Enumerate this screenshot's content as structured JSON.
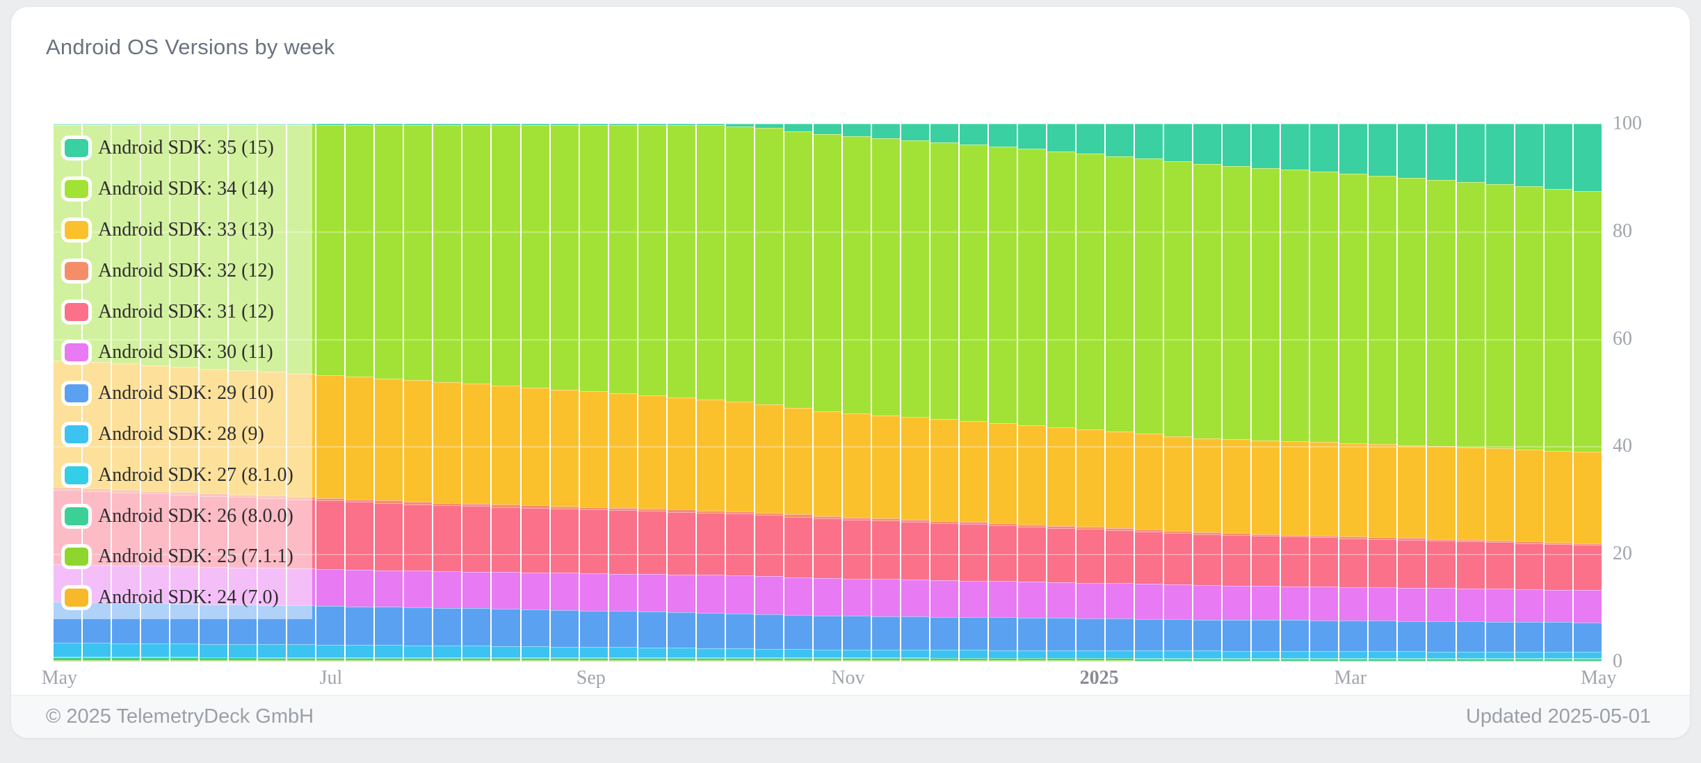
{
  "card": {
    "title": "Android OS Versions by week",
    "footer": {
      "copyright": "© 2025 TelemetryDeck GmbH",
      "updated": "Updated 2025-05-01"
    }
  },
  "colors": {
    "page_background": "#ebedef",
    "card_background": "#ffffff",
    "footer_background": "#f7f8f9",
    "axis_text": "#a0a5ad",
    "title_text": "#6b7280"
  },
  "chart_data": {
    "type": "bar",
    "subtype": "stacked-100-percent-weekly",
    "title": "Android OS Versions by week",
    "x_unit": "week",
    "weeks": 53,
    "x_range": [
      "May 2024",
      "May 2025"
    ],
    "ylim": [
      0,
      100
    ],
    "y_ticks": [
      0,
      20,
      40,
      60,
      80,
      100
    ],
    "grid": "subtle white lines at 20/40/60/80 over bars",
    "legend_position": "top-left overlay, translucent white panel",
    "x_ticks": [
      {
        "label": "May",
        "week": 0.2,
        "bold": false
      },
      {
        "label": "Jul",
        "week": 9.5,
        "bold": false
      },
      {
        "label": "Sep",
        "week": 18.4,
        "bold": false
      },
      {
        "label": "Nov",
        "week": 27.2,
        "bold": false
      },
      {
        "label": "2025",
        "week": 35.8,
        "bold": true
      },
      {
        "label": "Mar",
        "week": 44.4,
        "bold": false
      },
      {
        "label": "May",
        "week": 52.9,
        "bold": false
      }
    ],
    "interpolation": "linear between anchor weeks; values are percent share per week, stack normalized to 100",
    "series": [
      {
        "sdk": 35,
        "label": "Android SDK: 35 (15)",
        "color": "#3ad0a1",
        "anchor_weeks": [
          0,
          13,
          22,
          24,
          26,
          30,
          35,
          39,
          44,
          48,
          52
        ],
        "anchor_values": [
          0.2,
          0.2,
          0.3,
          0.8,
          2.0,
          3.5,
          5.5,
          7.5,
          9.3,
          10.8,
          12.5
        ]
      },
      {
        "sdk": 34,
        "label": "Android SDK: 34 (14)",
        "color": "#a2e236",
        "anchor_weeks": [
          0,
          13,
          26,
          39,
          52
        ],
        "anchor_values": [
          43.8,
          47.8,
          51.5,
          51.0,
          48.5
        ]
      },
      {
        "sdk": 33,
        "label": "Android SDK: 33 (13)",
        "color": "#fbc12d",
        "anchor_weeks": [
          0,
          13,
          26,
          39,
          52
        ],
        "anchor_values": [
          23.6,
          22.5,
          19.5,
          17.5,
          17.0
        ]
      },
      {
        "sdk": 32,
        "label": "Android SDK: 32 (12)",
        "color": "#f58e68",
        "anchor_weeks": [
          0,
          13,
          26,
          39,
          52
        ],
        "anchor_values": [
          0.5,
          0.45,
          0.4,
          0.35,
          0.3
        ]
      },
      {
        "sdk": 31,
        "label": "Android SDK: 31 (12)",
        "color": "#fa7189",
        "anchor_weeks": [
          0,
          13,
          26,
          39,
          52
        ],
        "anchor_values": [
          13.8,
          12.25,
          11.1,
          9.45,
          8.4
        ]
      },
      {
        "sdk": 30,
        "label": "Android SDK: 30 (11)",
        "color": "#e87af3",
        "anchor_weeks": [
          0,
          13,
          26,
          39,
          52
        ],
        "anchor_values": [
          7.0,
          6.8,
          7.0,
          6.4,
          6.0
        ]
      },
      {
        "sdk": 29,
        "label": "Android SDK: 29 (10)",
        "color": "#5ba1f2",
        "anchor_weeks": [
          0,
          13,
          26,
          39,
          52
        ],
        "anchor_values": [
          7.6,
          7.0,
          6.3,
          5.8,
          5.5
        ]
      },
      {
        "sdk": 28,
        "label": "Android SDK: 28 (9)",
        "color": "#3cc3f2",
        "anchor_weeks": [
          0,
          13,
          26,
          39,
          52
        ],
        "anchor_values": [
          2.6,
          2.2,
          1.5,
          1.35,
          1.2
        ]
      },
      {
        "sdk": 27,
        "label": "Android SDK: 27 (8.1.0)",
        "color": "#33cfe8",
        "anchor_weeks": [
          0,
          13,
          26,
          39,
          52
        ],
        "anchor_values": [
          0.12,
          0.11,
          0.1,
          0.09,
          0.08
        ]
      },
      {
        "sdk": 26,
        "label": "Android SDK: 26 (8.0.0)",
        "color": "#3ccf96",
        "anchor_weeks": [
          0,
          13,
          26,
          39,
          52
        ],
        "anchor_values": [
          0.5,
          0.45,
          0.42,
          0.38,
          0.34
        ]
      },
      {
        "sdk": 25,
        "label": "Android SDK: 25 (7.1.1)",
        "color": "#8ed62e",
        "anchor_weeks": [
          0,
          13,
          26,
          39,
          52
        ],
        "anchor_values": [
          0.12,
          0.11,
          0.1,
          0.09,
          0.08
        ]
      },
      {
        "sdk": 24,
        "label": "Android SDK: 24 (7.0)",
        "color": "#f7b928",
        "anchor_weeks": [
          0,
          13,
          26,
          39,
          52
        ],
        "anchor_values": [
          0.12,
          0.11,
          0.1,
          0.09,
          0.08
        ]
      }
    ]
  }
}
